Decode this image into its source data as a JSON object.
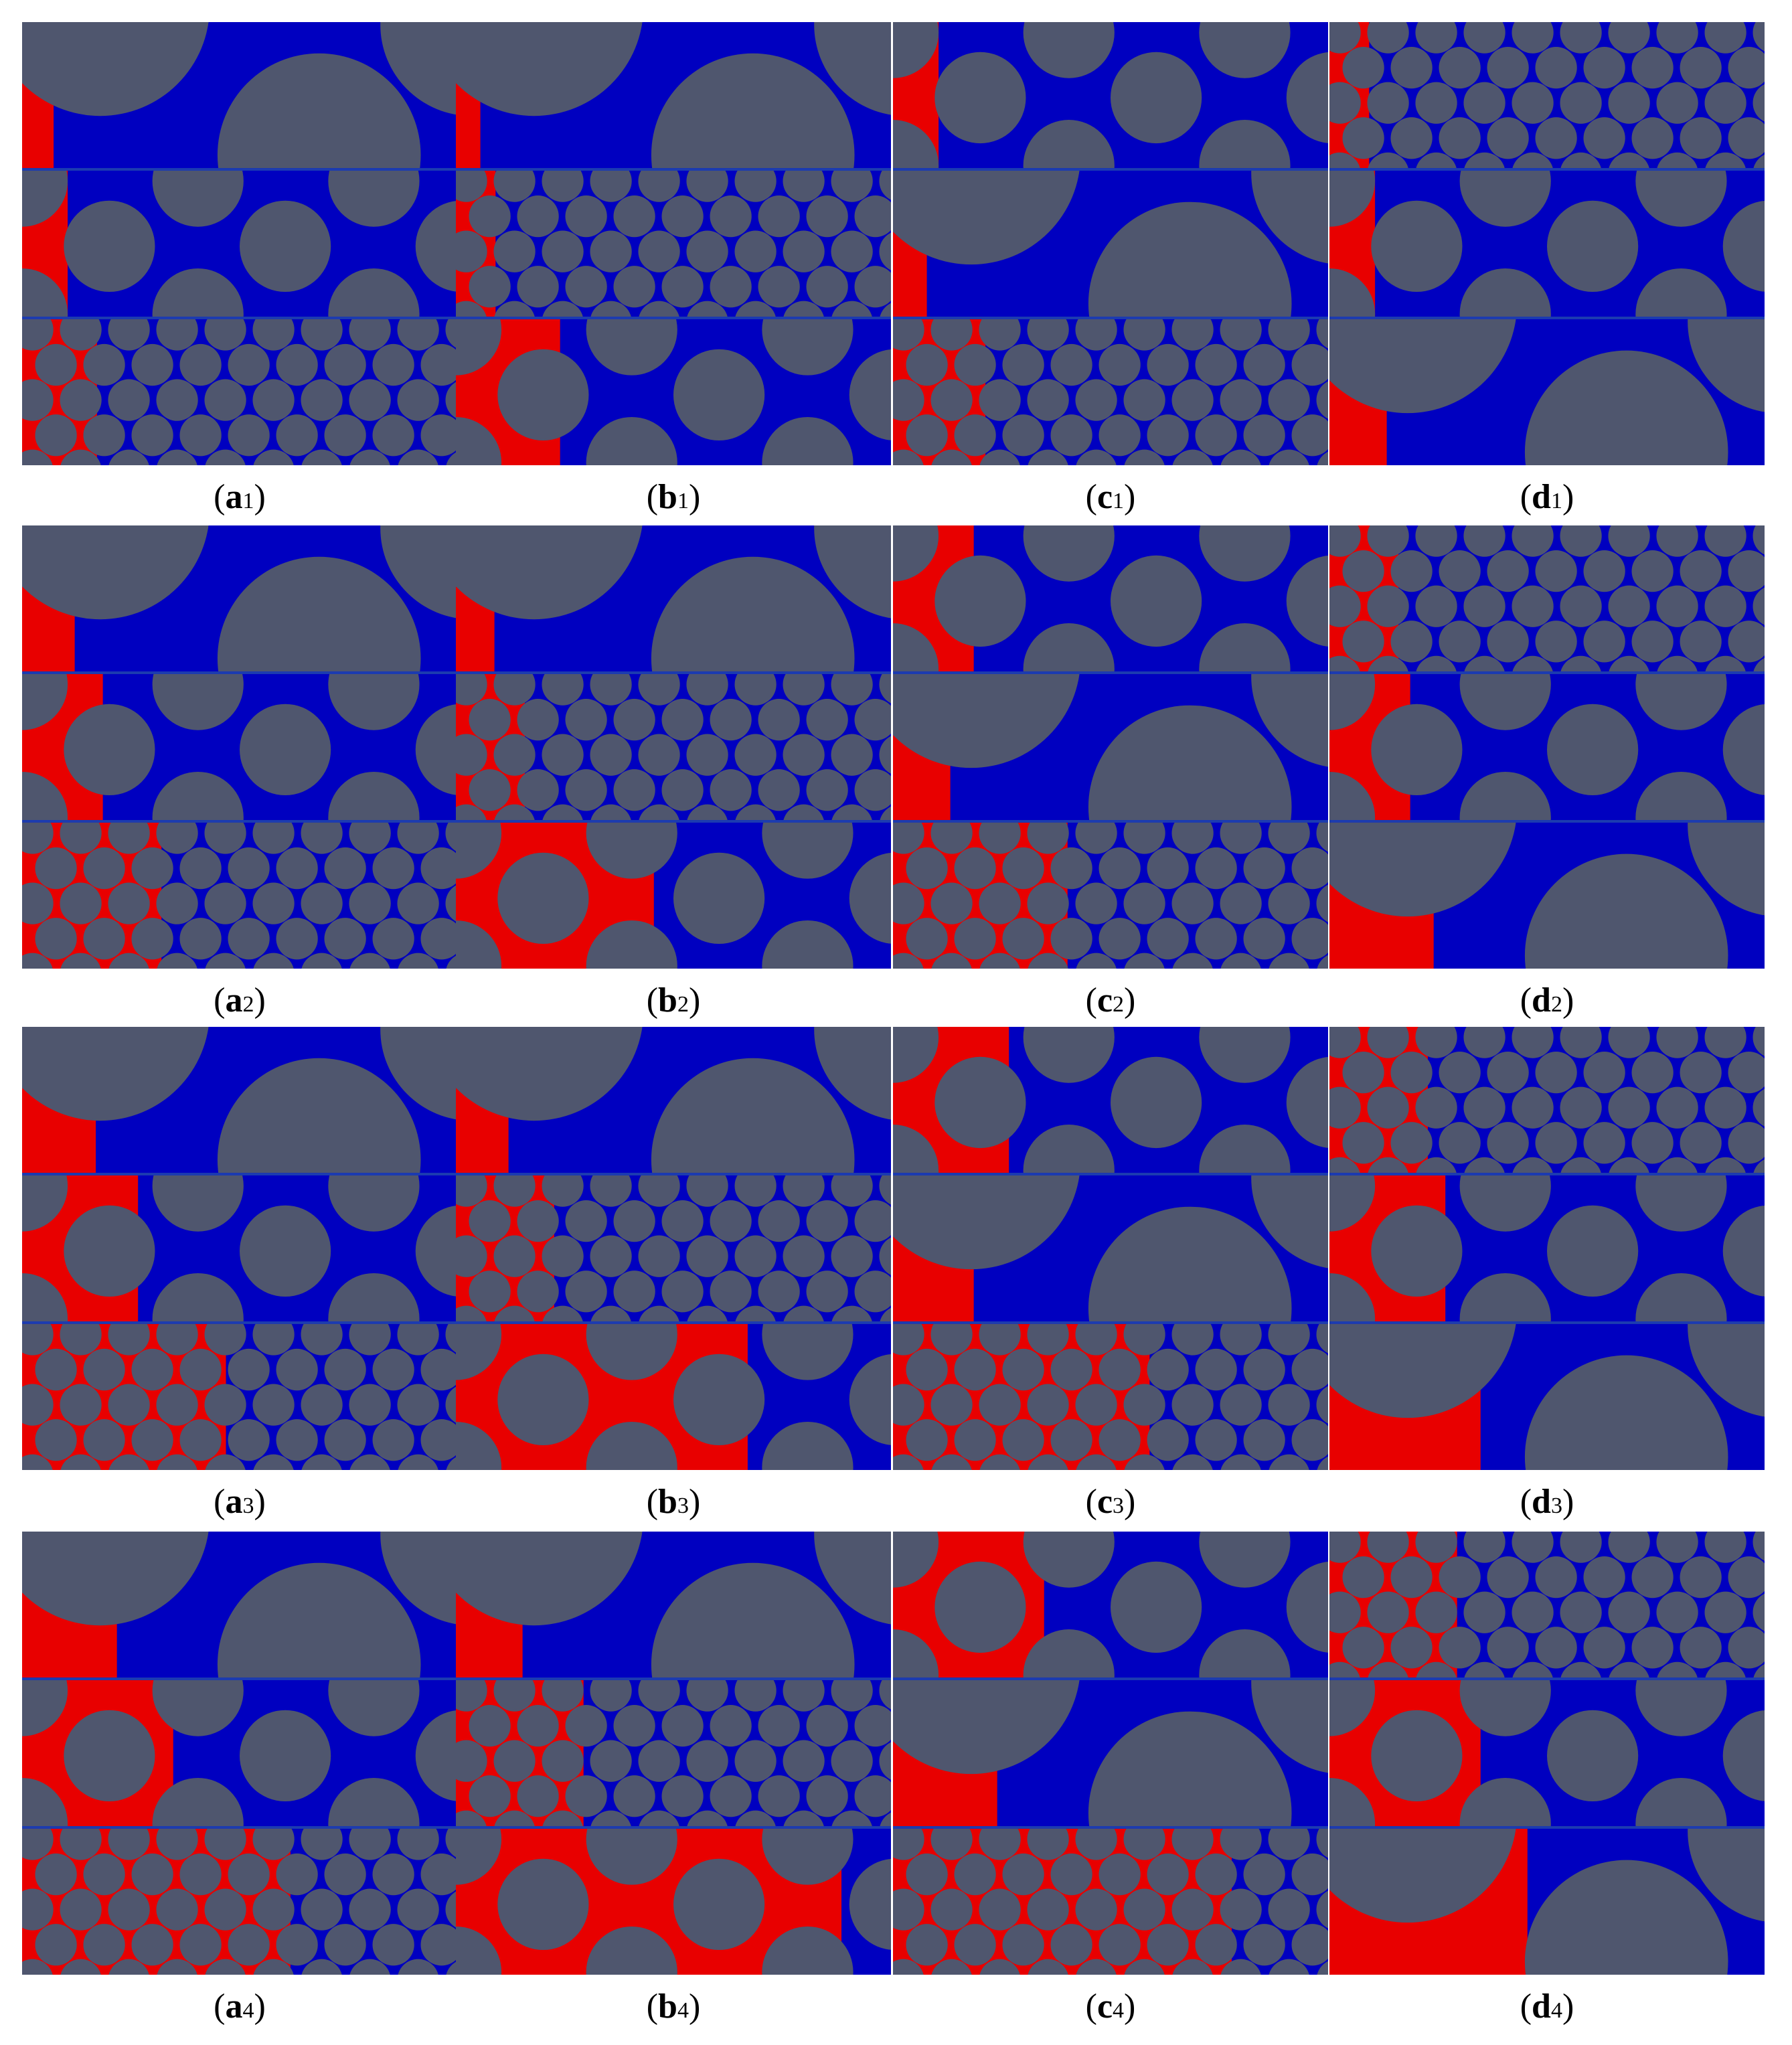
{
  "panels": [
    {
      "open": "(",
      "letter": "a",
      "sub": "1",
      "close": ")"
    },
    {
      "open": "(",
      "letter": "b",
      "sub": "1",
      "close": ")"
    },
    {
      "open": "(",
      "letter": "c",
      "sub": "1",
      "close": ")"
    },
    {
      "open": "(",
      "letter": "d",
      "sub": "1",
      "close": ")"
    },
    {
      "open": "(",
      "letter": "a",
      "sub": "2",
      "close": ")"
    },
    {
      "open": "(",
      "letter": "b",
      "sub": "2",
      "close": ")"
    },
    {
      "open": "(",
      "letter": "c",
      "sub": "2",
      "close": ")"
    },
    {
      "open": "(",
      "letter": "d",
      "sub": "2",
      "close": ")"
    },
    {
      "open": "(",
      "letter": "a",
      "sub": "3",
      "close": ")"
    },
    {
      "open": "(",
      "letter": "b",
      "sub": "3",
      "close": ")"
    },
    {
      "open": "(",
      "letter": "c",
      "sub": "3",
      "close": ")"
    },
    {
      "open": "(",
      "letter": "d",
      "sub": "3",
      "close": ")"
    },
    {
      "open": "(",
      "letter": "a",
      "sub": "4",
      "close": ")"
    },
    {
      "open": "(",
      "letter": "b",
      "sub": "4",
      "close": ")"
    },
    {
      "open": "(",
      "letter": "c",
      "sub": "4",
      "close": ")"
    },
    {
      "open": "(",
      "letter": "d",
      "sub": "4",
      "close": ")"
    }
  ]
}
